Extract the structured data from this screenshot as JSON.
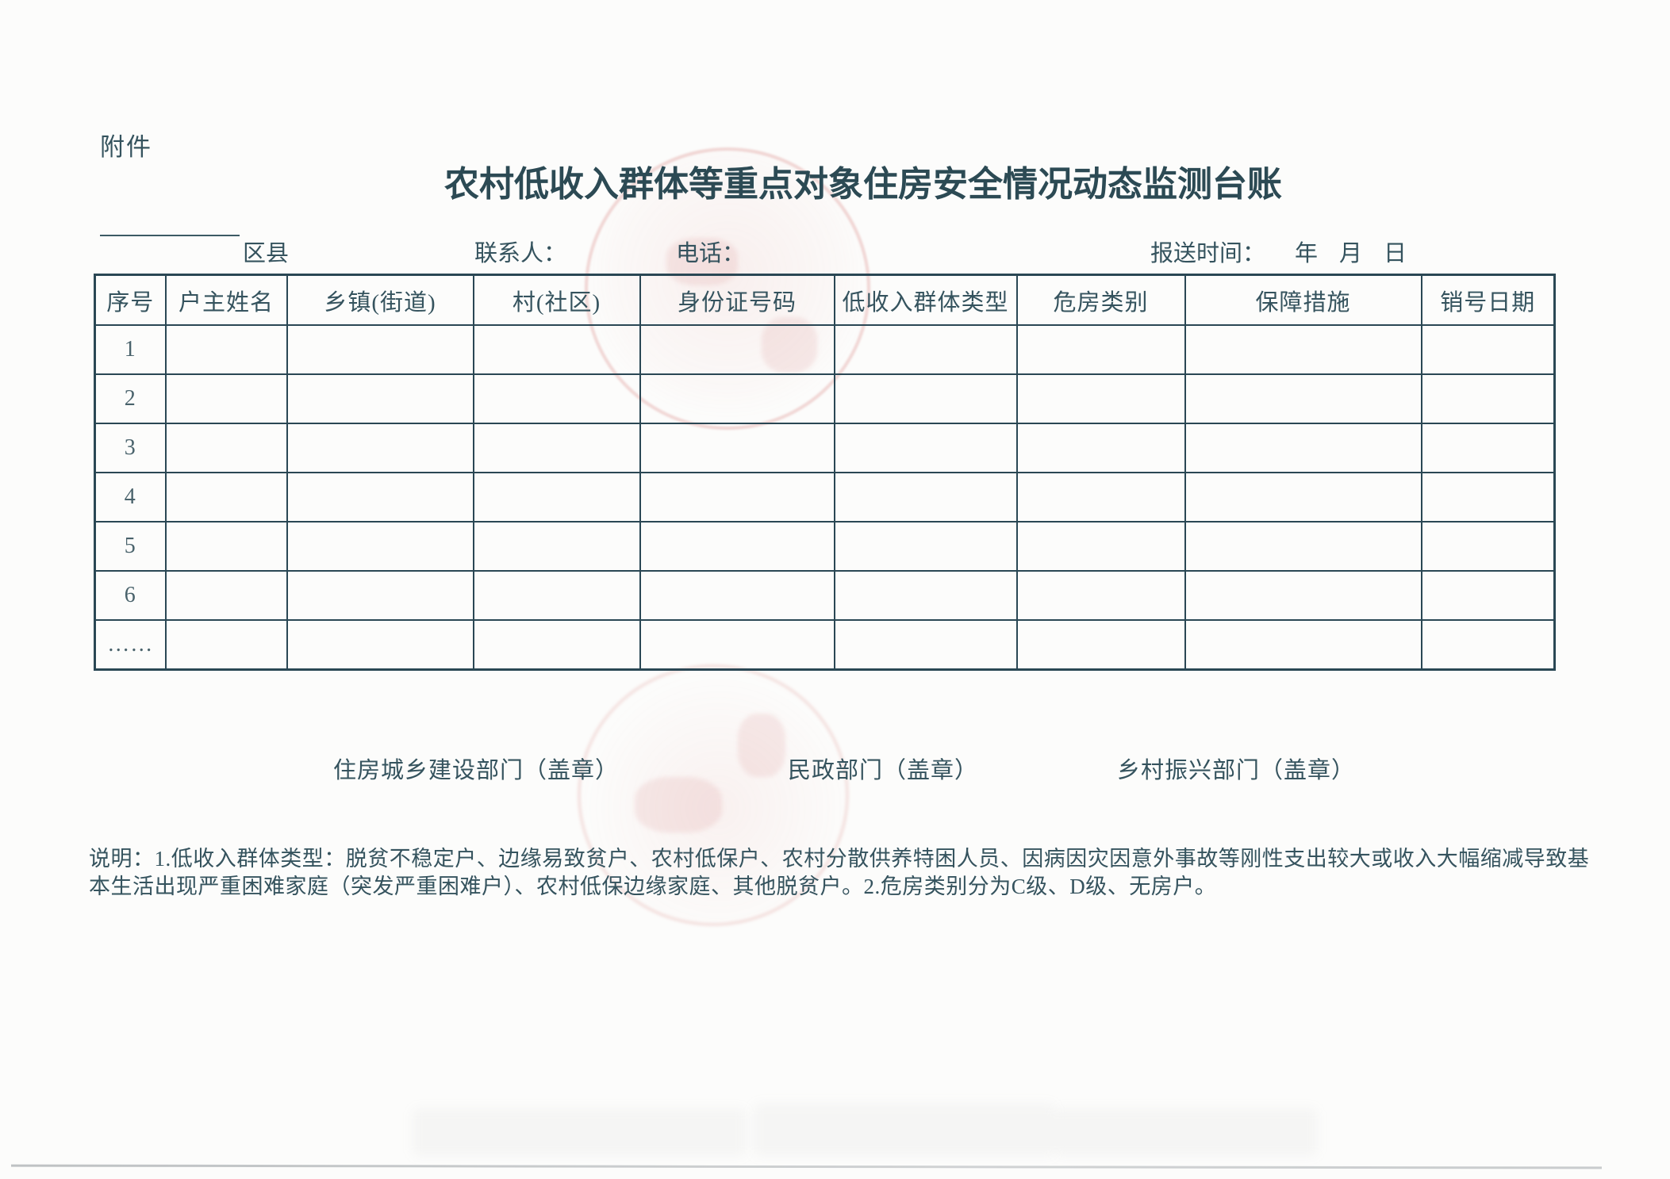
{
  "colors": {
    "ink": "#35535e",
    "border": "#2a4754",
    "stamp": "#d98c8a"
  },
  "document": {
    "attachment_label": "附件",
    "title": "农村低收入群体等重点对象住房安全情况动态监测台账"
  },
  "info_line": {
    "region_label": "区县",
    "contact_label": "联系人：",
    "phone_label": "电话：",
    "report_time_label": "报送时间：",
    "year_label": "年",
    "month_label": "月",
    "day_label": "日"
  },
  "table": {
    "headers": [
      "序号",
      "户主姓名",
      "乡镇(街道)",
      "村(社区)",
      "身份证号码",
      "低收入群体类型",
      "危房类别",
      "保障措施",
      "销号日期"
    ],
    "row_labels": [
      "1",
      "2",
      "3",
      "4",
      "5",
      "6",
      "……"
    ]
  },
  "signatures": [
    "住房城乡建设部门（盖章）",
    "民政部门（盖章）",
    "乡村振兴部门（盖章）"
  ],
  "notes": "说明：1.低收入群体类型：脱贫不稳定户、边缘易致贫户、农村低保户、农村分散供养特困人员、因病因灾因意外事故等刚性支出较大或收入大幅缩减导致基本生活出现严重困难家庭（突发严重困难户）、农村低保边缘家庭、其他脱贫户。2.危房类别分为C级、D级、无房户。"
}
